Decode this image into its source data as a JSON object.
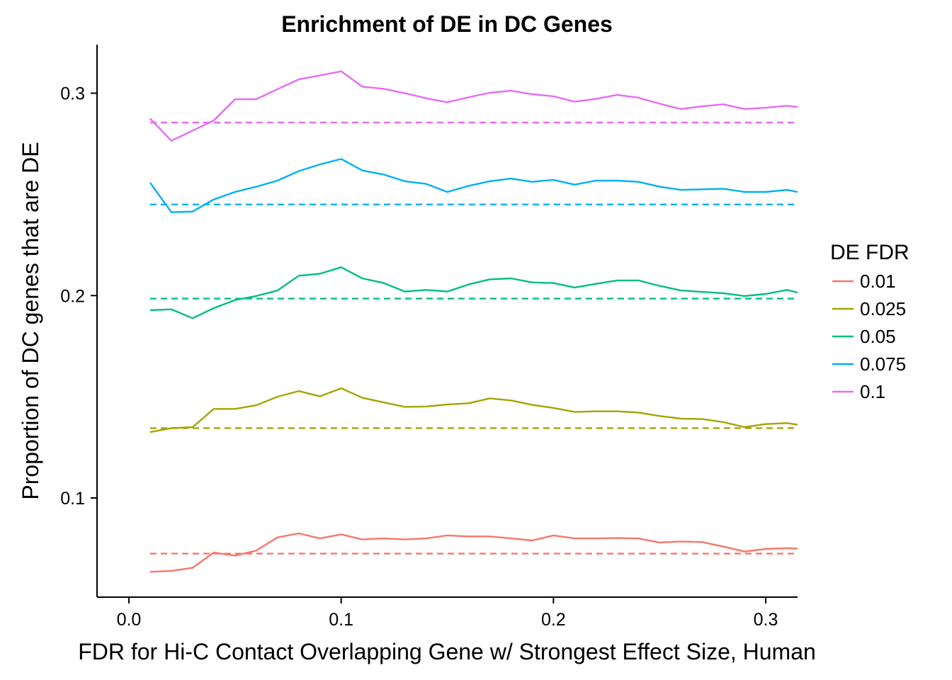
{
  "chart_data": {
    "type": "line",
    "title": "Enrichment of DE in DC Genes",
    "xlabel": "FDR for Hi-C Contact Overlapping Gene w/ Strongest Effect Size, Human",
    "ylabel": "Proportion of DC genes that are DE",
    "xlim": [
      -0.015,
      0.315
    ],
    "ylim": [
      0.051,
      0.324
    ],
    "xticks": [
      0.0,
      0.1,
      0.2,
      0.3
    ],
    "xtick_labels": [
      "0.0",
      "0.1",
      "0.2",
      "0.3"
    ],
    "yticks": [
      0.1,
      0.2,
      0.3
    ],
    "ytick_labels": [
      "0.1",
      "0.2",
      "0.3"
    ],
    "grid": false,
    "legend": {
      "title": "DE FDR",
      "position": "right"
    },
    "x": [
      0.01,
      0.02,
      0.03,
      0.04,
      0.05,
      0.06,
      0.07,
      0.08,
      0.09,
      0.1,
      0.11,
      0.12,
      0.13,
      0.14,
      0.15,
      0.16,
      0.17,
      0.18,
      0.19,
      0.2,
      0.21,
      0.22,
      0.23,
      0.24,
      0.25,
      0.26,
      0.27,
      0.28,
      0.29,
      0.3,
      0.31,
      0.315
    ],
    "series": [
      {
        "name": "0.01",
        "color": "#F8766D",
        "baseline": 0.0725,
        "values": [
          0.0635,
          0.064,
          0.0655,
          0.073,
          0.0715,
          0.074,
          0.0805,
          0.0825,
          0.08,
          0.082,
          0.0795,
          0.08,
          0.0795,
          0.08,
          0.0815,
          0.081,
          0.081,
          0.08,
          0.079,
          0.0815,
          0.08,
          0.08,
          0.0802,
          0.08,
          0.078,
          0.0785,
          0.0782,
          0.076,
          0.0735,
          0.0748,
          0.0752,
          0.075
        ]
      },
      {
        "name": "0.025",
        "color": "#A3A500",
        "baseline": 0.1345,
        "values": [
          0.1325,
          0.1345,
          0.135,
          0.144,
          0.144,
          0.1458,
          0.15,
          0.1528,
          0.1502,
          0.1542,
          0.1495,
          0.1472,
          0.145,
          0.1452,
          0.1462,
          0.1468,
          0.1492,
          0.1482,
          0.146,
          0.1445,
          0.1425,
          0.1428,
          0.1428,
          0.1422,
          0.1405,
          0.1392,
          0.139,
          0.1375,
          0.135,
          0.1365,
          0.137,
          0.1362
        ]
      },
      {
        "name": "0.05",
        "color": "#00BF7D",
        "baseline": 0.1985,
        "values": [
          0.1928,
          0.1932,
          0.1888,
          0.1938,
          0.1978,
          0.1998,
          0.2025,
          0.2098,
          0.2108,
          0.214,
          0.2085,
          0.2062,
          0.202,
          0.2028,
          0.202,
          0.2055,
          0.208,
          0.2085,
          0.2065,
          0.2062,
          0.204,
          0.2058,
          0.2075,
          0.2075,
          0.2048,
          0.2025,
          0.2018,
          0.2012,
          0.1998,
          0.2008,
          0.2028,
          0.2015
        ]
      },
      {
        "name": "0.075",
        "color": "#00B0F6",
        "baseline": 0.245,
        "values": [
          0.2558,
          0.2412,
          0.2415,
          0.2475,
          0.2512,
          0.2538,
          0.2568,
          0.2615,
          0.2648,
          0.2675,
          0.2618,
          0.2598,
          0.2565,
          0.2552,
          0.2512,
          0.2542,
          0.2565,
          0.2578,
          0.2562,
          0.2572,
          0.2548,
          0.2568,
          0.2568,
          0.2562,
          0.2538,
          0.2522,
          0.2525,
          0.2528,
          0.2512,
          0.2512,
          0.2522,
          0.2512
        ]
      },
      {
        "name": "0.1",
        "color": "#E76BF3",
        "baseline": 0.2855,
        "values": [
          0.2875,
          0.2765,
          0.2815,
          0.2865,
          0.297,
          0.297,
          0.302,
          0.3068,
          0.3088,
          0.3108,
          0.3032,
          0.3022,
          0.3,
          0.2975,
          0.2955,
          0.298,
          0.3002,
          0.3012,
          0.2995,
          0.2985,
          0.2958,
          0.2972,
          0.2992,
          0.2978,
          0.2948,
          0.2922,
          0.2935,
          0.2945,
          0.2922,
          0.2928,
          0.2938,
          0.2932
        ]
      }
    ]
  }
}
